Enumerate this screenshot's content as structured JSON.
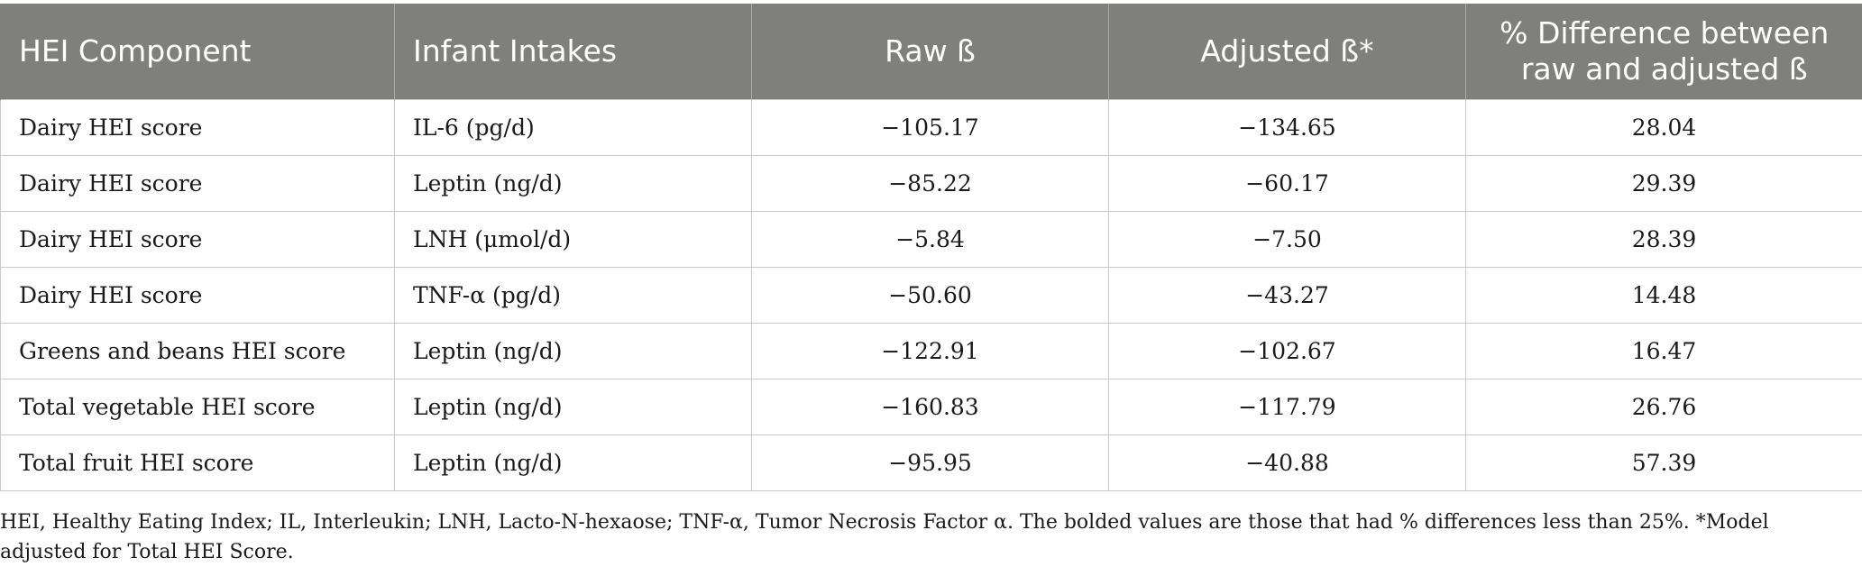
{
  "table": {
    "headers": [
      "HEI Component",
      "Infant Intakes",
      "Raw ß",
      "Adjusted ß*",
      "% Difference between raw and adjusted ß"
    ],
    "rows": [
      [
        "Dairy HEI score",
        "IL-6 (pg/d)",
        "−105.17",
        "−134.65",
        "28.04"
      ],
      [
        "Dairy HEI score",
        "Leptin (ng/d)",
        "−85.22",
        "−60.17",
        "29.39"
      ],
      [
        "Dairy HEI score",
        "LNH (μmol/d)",
        "−5.84",
        "−7.50",
        "28.39"
      ],
      [
        "Dairy HEI score",
        "TNF-α (pg/d)",
        "−50.60",
        "−43.27",
        "14.48"
      ],
      [
        "Greens and beans HEI score",
        "Leptin (ng/d)",
        "−122.91",
        "−102.67",
        "16.47"
      ],
      [
        "Total vegetable HEI score",
        "Leptin (ng/d)",
        "−160.83",
        "−117.79",
        "26.76"
      ],
      [
        "Total fruit HEI score",
        "Leptin (ng/d)",
        "−95.95",
        "−40.88",
        "57.39"
      ]
    ]
  },
  "footnote": "HEI, Healthy Eating Index; IL, Interleukin; LNH, Lacto-N-hexaose; TNF-α, Tumor Necrosis Factor α. The bolded values are those that had % differences less than 25%. *Model adjusted for Total HEI Score."
}
